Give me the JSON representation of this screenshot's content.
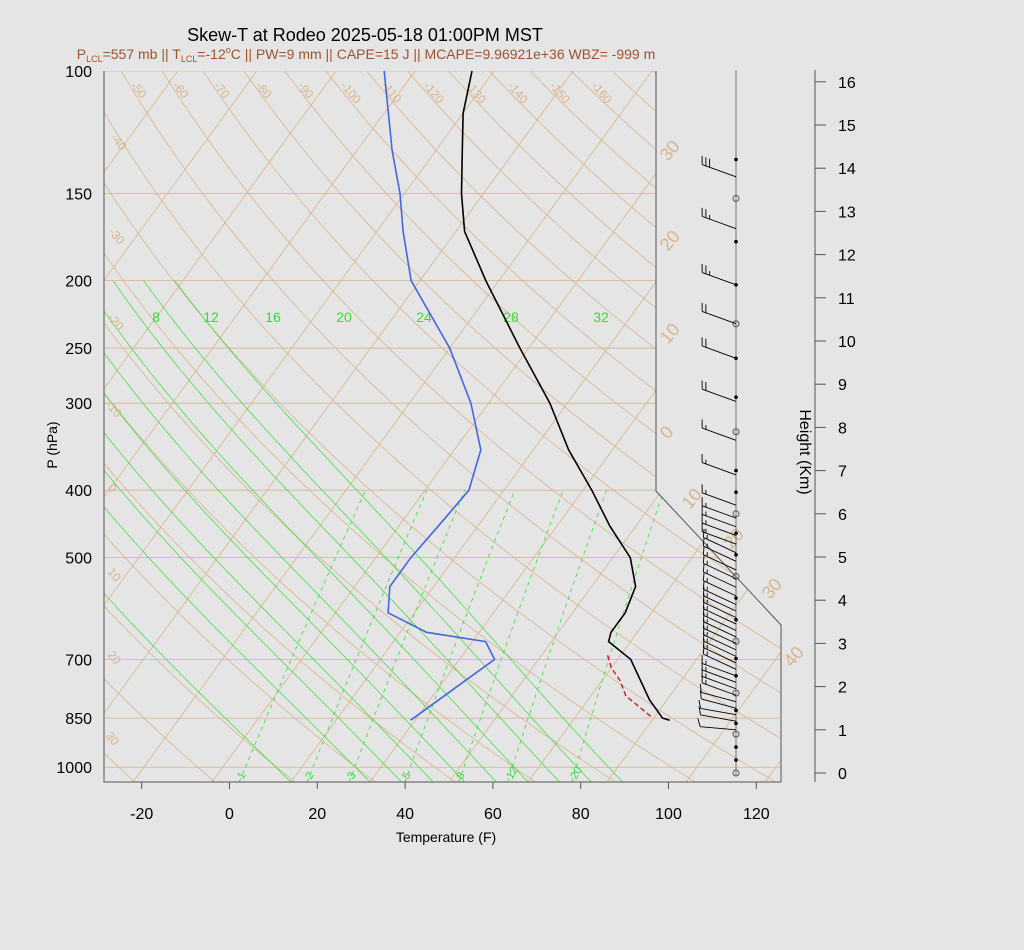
{
  "chart_data": {
    "type": "skew-t",
    "title": "Skew-T at Rodeo 2025-05-18 01:00PM MST",
    "subtitle": "P_LCL=557 mb || T_LCL=-12°C || PW=9 mm || CAPE=15 J || MCAPE=9.96921e+36 WBZ= -999 m",
    "subtitle_parts": {
      "p_sym": "P",
      "p_sub": "LCL",
      "p_val": "=557 mb || ",
      "t_sym": "T",
      "t_sub": "LCL",
      "t_val": "=-12",
      "t_deg": "o",
      "t_rest": "C || PW=9 mm || CAPE=15 J || MCAPE=9.96921e+36 WBZ= -999 m"
    },
    "xlabel": "Temperature (F)",
    "ylabel": "P (hPa)",
    "y2label": "Height (Km)",
    "x_ticks": [
      "-20",
      "0",
      "20",
      "40",
      "60",
      "80",
      "100",
      "120"
    ],
    "x_tick_values": [
      -20,
      0,
      20,
      40,
      60,
      80,
      100,
      120
    ],
    "xlim": [
      -28,
      125
    ],
    "ylim": [
      1050,
      100
    ],
    "y_scale": "log",
    "p_ticks": [
      "100",
      "150",
      "200",
      "250",
      "300",
      "400",
      "500",
      "700",
      "850",
      "1000"
    ],
    "p_tick_values": [
      100,
      150,
      200,
      250,
      300,
      400,
      500,
      700,
      850,
      1000
    ],
    "height_ticks": [
      "0",
      "1",
      "2",
      "3",
      "4",
      "5",
      "6",
      "7",
      "8",
      "9",
      "10",
      "11",
      "12",
      "13",
      "14",
      "15",
      "16"
    ],
    "isotherm_labels": [
      "30",
      "20",
      "10",
      "0",
      "-10",
      "-20",
      "-30",
      "-40",
      "-50",
      "-60",
      "-70",
      "-80",
      "-90",
      "-100",
      "-110",
      "-120",
      "-130",
      "-140",
      "-150",
      "-160"
    ],
    "mixing_ratio_labels_top": [
      "8",
      "12",
      "16",
      "20",
      "24",
      "28",
      "32"
    ],
    "mixing_ratio_labels_bottom": [
      "1",
      "2",
      "3",
      "5",
      "8",
      "12",
      "20"
    ],
    "colors": {
      "background": "#e5e5e5",
      "plot_bg": "#e5e5e5",
      "temperature": "#000000",
      "dewpoint": "#4466e0",
      "parcel": "#cc2222",
      "grid": "#d8b48a",
      "mixing_ratio": "#33dd33",
      "label_accent": "#a0522d",
      "wind": "#000000"
    },
    "series": [
      {
        "name": "",
        "role": "temperature",
        "p": [
          856,
          850,
          800,
          700,
          660,
          640,
          600,
          550,
          500,
          450,
          400,
          350,
          300,
          250,
          200,
          170,
          150,
          130,
          115,
          100
        ],
        "t": [
          90,
          88,
          82,
          71,
          63,
          62,
          62,
          60,
          54,
          44,
          34,
          22,
          10,
          -6,
          -25,
          -38,
          -45,
          -52,
          -58,
          -63
        ]
      },
      {
        "name": "",
        "role": "dewpoint",
        "p": [
          856,
          800,
          700,
          660,
          640,
          600,
          550,
          500,
          450,
          400,
          350,
          300,
          250,
          200,
          170,
          150,
          130,
          115,
          100
        ],
        "t": [
          31,
          34,
          40,
          35,
          20,
          8,
          4,
          4,
          5,
          6,
          2,
          -8,
          -22,
          -42,
          -52,
          -59,
          -68,
          -75,
          -83
        ]
      },
      {
        "name": "",
        "role": "parcel",
        "p": [
          845,
          820,
          790,
          750,
          720,
          690
        ],
        "t": [
          85,
          81,
          76,
          72,
          68,
          65
        ]
      }
    ],
    "wind_heights_km": [
      0.0,
      0.3,
      0.6,
      0.9,
      1.15,
      1.45,
      1.85,
      2.25,
      2.65,
      3.05,
      3.55,
      4.05,
      4.55,
      5.05,
      5.55,
      6.0,
      6.5,
      7.0,
      7.9,
      8.7,
      9.6,
      10.4,
      11.3,
      12.3,
      13.3,
      14.2
    ],
    "wind_barb_heights_km": [
      1.0,
      1.2,
      1.35,
      1.5,
      1.65,
      1.8,
      1.95,
      2.1,
      2.25,
      2.4,
      2.55,
      2.7,
      2.85,
      3.0,
      3.15,
      3.3,
      3.45,
      3.6,
      3.75,
      3.9,
      4.1,
      4.3,
      4.5,
      4.7,
      4.9,
      5.1,
      5.3,
      5.5,
      5.7,
      5.9,
      6.2,
      6.9,
      7.7,
      8.6,
      9.6,
      10.4,
      11.3,
      12.6,
      13.8
    ],
    "wind_dir_deg": [
      275,
      280,
      280,
      285,
      285,
      290,
      290,
      290,
      290,
      295,
      295,
      295,
      295,
      295,
      295,
      295,
      295,
      295,
      295,
      295,
      295,
      295,
      295,
      295,
      295,
      295,
      290,
      290,
      290,
      290,
      290,
      290,
      290,
      290,
      290,
      290,
      290,
      290,
      290
    ],
    "wind_speed_kt": [
      10,
      12,
      12,
      14,
      14,
      15,
      15,
      15,
      15,
      16,
      16,
      16,
      16,
      16,
      16,
      16,
      16,
      16,
      16,
      16,
      16,
      16,
      16,
      16,
      16,
      16,
      15,
      15,
      15,
      15,
      16,
      17,
      18,
      20,
      22,
      24,
      26,
      28,
      30
    ]
  }
}
